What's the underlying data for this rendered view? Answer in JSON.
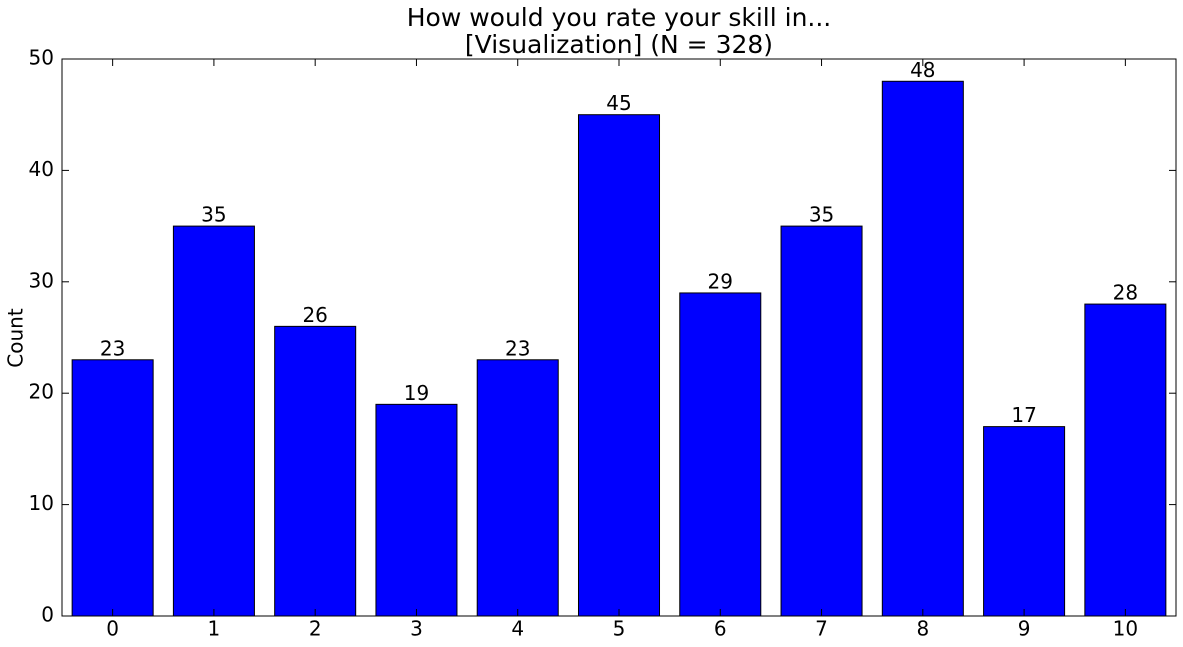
{
  "chart_data": {
    "type": "bar",
    "title": [
      "How would you rate your skill in...",
      "[Visualization] (N = 328)"
    ],
    "ylabel": "Count",
    "categories": [
      "0",
      "1",
      "2",
      "3",
      "4",
      "5",
      "6",
      "7",
      "8",
      "9",
      "10"
    ],
    "values": [
      23,
      35,
      26,
      19,
      23,
      45,
      29,
      35,
      48,
      17,
      28
    ],
    "color": "#0000ff",
    "ylim": [
      0,
      50
    ],
    "yticks": [
      0,
      10,
      20,
      30,
      40,
      50
    ],
    "grid": false
  }
}
